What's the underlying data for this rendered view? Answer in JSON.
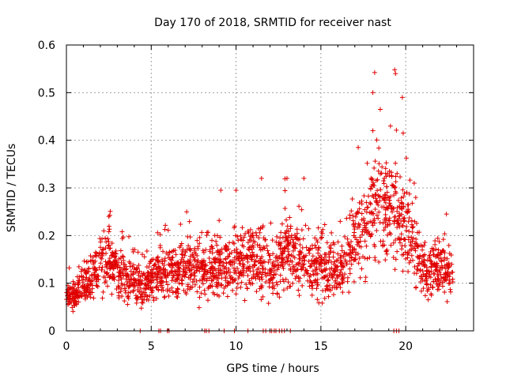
{
  "chart_data": {
    "type": "scatter",
    "title": "Day 170 of 2018, SRMTID for receiver nast",
    "xlabel": "GPS time / hours",
    "ylabel": "SRMTID / TECUs",
    "xlim": [
      0,
      24
    ],
    "ylim": [
      0,
      0.6
    ],
    "xticks": [
      0,
      5,
      10,
      15,
      20
    ],
    "xtick_labels": [
      "0",
      "5",
      "10",
      "15",
      "20"
    ],
    "yticks": [
      0,
      0.1,
      0.2,
      0.3,
      0.4,
      0.5,
      0.6
    ],
    "ytick_labels": [
      "0",
      "0.1",
      "0.2",
      "0.3",
      "0.4",
      "0.5",
      "0.6"
    ],
    "grid": true,
    "marker": "+",
    "series_color": "#e00000",
    "trend": {
      "x": [
        0,
        0.5,
        1,
        1.5,
        2,
        2.5,
        3,
        3.5,
        4,
        4.5,
        5,
        5.5,
        6,
        6.5,
        7,
        7.5,
        8,
        8.5,
        9,
        9.5,
        10,
        10.5,
        11,
        11.5,
        12,
        12.5,
        13,
        13.5,
        14,
        14.5,
        15,
        15.5,
        16,
        16.5,
        17,
        17.5,
        18,
        18.5,
        19,
        19.5,
        20,
        20.5,
        21,
        21.5,
        22,
        22.5,
        22.8
      ],
      "y": [
        0.08,
        0.075,
        0.095,
        0.105,
        0.13,
        0.155,
        0.125,
        0.11,
        0.1,
        0.095,
        0.11,
        0.12,
        0.115,
        0.12,
        0.135,
        0.13,
        0.12,
        0.125,
        0.135,
        0.13,
        0.14,
        0.145,
        0.15,
        0.14,
        0.13,
        0.13,
        0.17,
        0.16,
        0.15,
        0.13,
        0.13,
        0.14,
        0.12,
        0.15,
        0.19,
        0.2,
        0.25,
        0.27,
        0.26,
        0.25,
        0.22,
        0.16,
        0.13,
        0.12,
        0.13,
        0.12,
        0.1
      ]
    },
    "spikes": [
      {
        "x": 2.5,
        "y": 0.24
      },
      {
        "x": 9.1,
        "y": 0.295
      },
      {
        "x": 10.0,
        "y": 0.295
      },
      {
        "x": 11.5,
        "y": 0.32
      },
      {
        "x": 13.0,
        "y": 0.32
      },
      {
        "x": 14.0,
        "y": 0.32
      },
      {
        "x": 17.2,
        "y": 0.385
      },
      {
        "x": 18.5,
        "y": 0.465
      },
      {
        "x": 19.1,
        "y": 0.43
      },
      {
        "x": 19.35,
        "y": 0.548
      },
      {
        "x": 19.4,
        "y": 0.54
      },
      {
        "x": 19.8,
        "y": 0.49
      },
      {
        "x": 19.85,
        "y": 0.415
      },
      {
        "x": 20.5,
        "y": 0.31
      },
      {
        "x": 22.4,
        "y": 0.245
      }
    ],
    "zero_points_x": [
      4.35,
      5.45,
      5.55,
      5.95,
      6.05,
      8.15,
      8.25,
      8.4,
      9.3,
      9.9,
      10.7,
      11.6,
      11.75,
      12.0,
      12.1,
      12.25,
      12.35,
      12.55,
      12.7,
      12.85,
      13.2,
      19.3,
      19.45,
      19.6
    ]
  }
}
